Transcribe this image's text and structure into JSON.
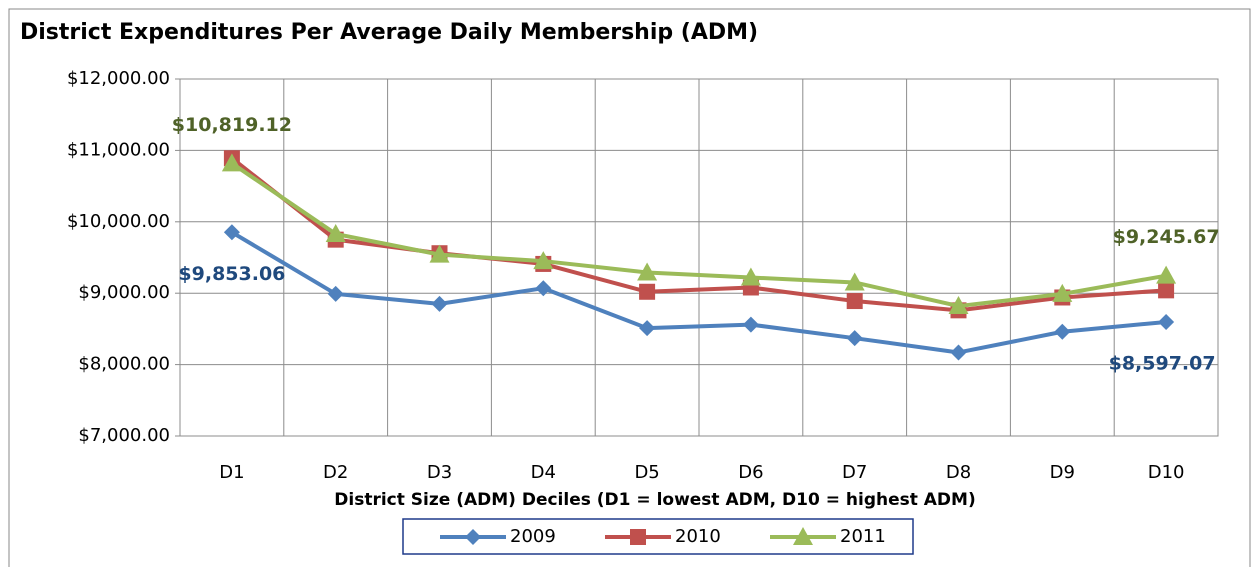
{
  "chart_data": {
    "type": "line",
    "title": "District Expenditures Per Average Daily Membership (ADM)",
    "x_label": "District Size (ADM) Deciles (D1 = lowest ADM, D10 = highest ADM)",
    "categories": [
      "D1",
      "D2",
      "D3",
      "D4",
      "D5",
      "D6",
      "D7",
      "D8",
      "D9",
      "D10"
    ],
    "ylim": [
      7000,
      12000
    ],
    "yticks": [
      {
        "value": 7000,
        "label": "$7,000.00"
      },
      {
        "value": 8000,
        "label": "$8,000.00"
      },
      {
        "value": 9000,
        "label": "$9,000.00"
      },
      {
        "value": 10000,
        "label": "$10,000.00"
      },
      {
        "value": 11000,
        "label": "$11,000.00"
      },
      {
        "value": 12000,
        "label": "$12,000.00"
      }
    ],
    "grid": true,
    "legend": "bottom",
    "series": [
      {
        "name": "2009",
        "color": "#4f81bd",
        "marker": "diamond",
        "label_color": "#1f497d",
        "values": [
          9853.06,
          8990,
          8850,
          9070,
          8510,
          8560,
          8370,
          8170,
          8460,
          8597.07
        ],
        "value_labels": [
          "$9,853.06",
          null,
          null,
          null,
          null,
          null,
          null,
          null,
          null,
          "$8,597.07"
        ]
      },
      {
        "name": "2010",
        "color": "#c0504d",
        "marker": "square",
        "values": [
          10890,
          9750,
          9560,
          9410,
          9020,
          9080,
          8890,
          8760,
          8940,
          9040
        ]
      },
      {
        "name": "2011",
        "color": "#9bbb59",
        "marker": "triangle",
        "label_color": "#4f6228",
        "values": [
          10819.12,
          9830,
          9540,
          9450,
          9290,
          9220,
          9150,
          8820,
          8990,
          9245.67
        ],
        "value_labels": [
          "$10,819.12",
          null,
          null,
          null,
          null,
          null,
          null,
          null,
          null,
          "$9,245.67"
        ]
      }
    ]
  }
}
